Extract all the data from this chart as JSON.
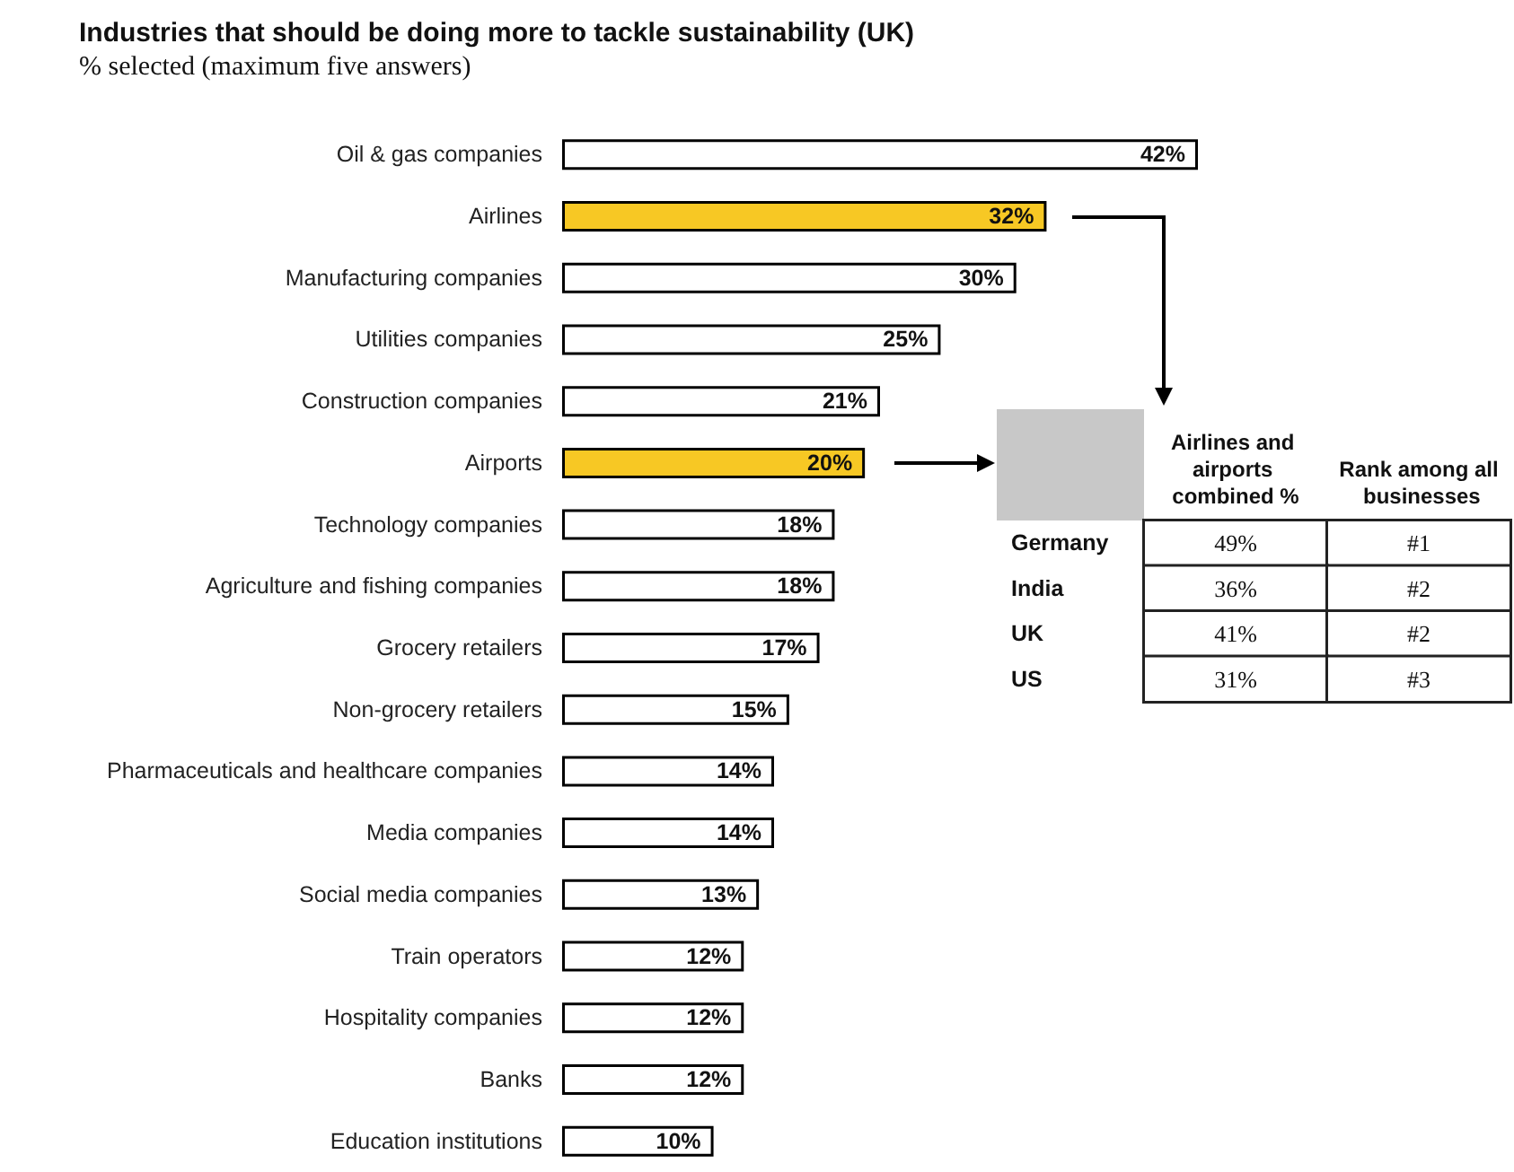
{
  "chart_data": [
    {
      "type": "bar",
      "orientation": "horizontal",
      "title": "Industries that should be doing more to tackle sustainability (UK)",
      "subtitle": "% selected (maximum five answers)",
      "categories": [
        "Oil & gas companies",
        "Airlines",
        "Manufacturing companies",
        "Utilities companies",
        "Construction companies",
        "Airports",
        "Technology companies",
        "Agriculture and fishing companies",
        "Grocery retailers",
        "Non-grocery retailers",
        "Pharmaceuticals and healthcare companies",
        "Media companies",
        "Social media companies",
        "Train operators",
        "Hospitality companies",
        "Banks",
        "Education institutions"
      ],
      "values": [
        42,
        32,
        30,
        25,
        21,
        20,
        18,
        18,
        17,
        15,
        14,
        14,
        13,
        12,
        12,
        12,
        10
      ],
      "value_labels": [
        "42%",
        "32%",
        "30%",
        "25%",
        "21%",
        "20%",
        "18%",
        "18%",
        "17%",
        "15%",
        "14%",
        "14%",
        "13%",
        "12%",
        "12%",
        "12%",
        "10%"
      ],
      "colors": [
        "#ffffff",
        "#f7c824",
        "#ffffff",
        "#ffffff",
        "#ffffff",
        "#f7c824",
        "#ffffff",
        "#ffffff",
        "#ffffff",
        "#ffffff",
        "#ffffff",
        "#ffffff",
        "#ffffff",
        "#ffffff",
        "#ffffff",
        "#ffffff",
        "#ffffff"
      ]
    },
    {
      "type": "other",
      "categories": [
        "Airlines and airports combined %",
        "Rank among all businesses"
      ],
      "y_categories": [
        "Germany",
        "India",
        "UK",
        "US"
      ],
      "cell_labels": [
        [
          "49%",
          "#1"
        ],
        [
          "36%",
          "#2"
        ],
        [
          "41%",
          "#2"
        ],
        [
          "31%",
          "#3"
        ]
      ]
    }
  ]
}
